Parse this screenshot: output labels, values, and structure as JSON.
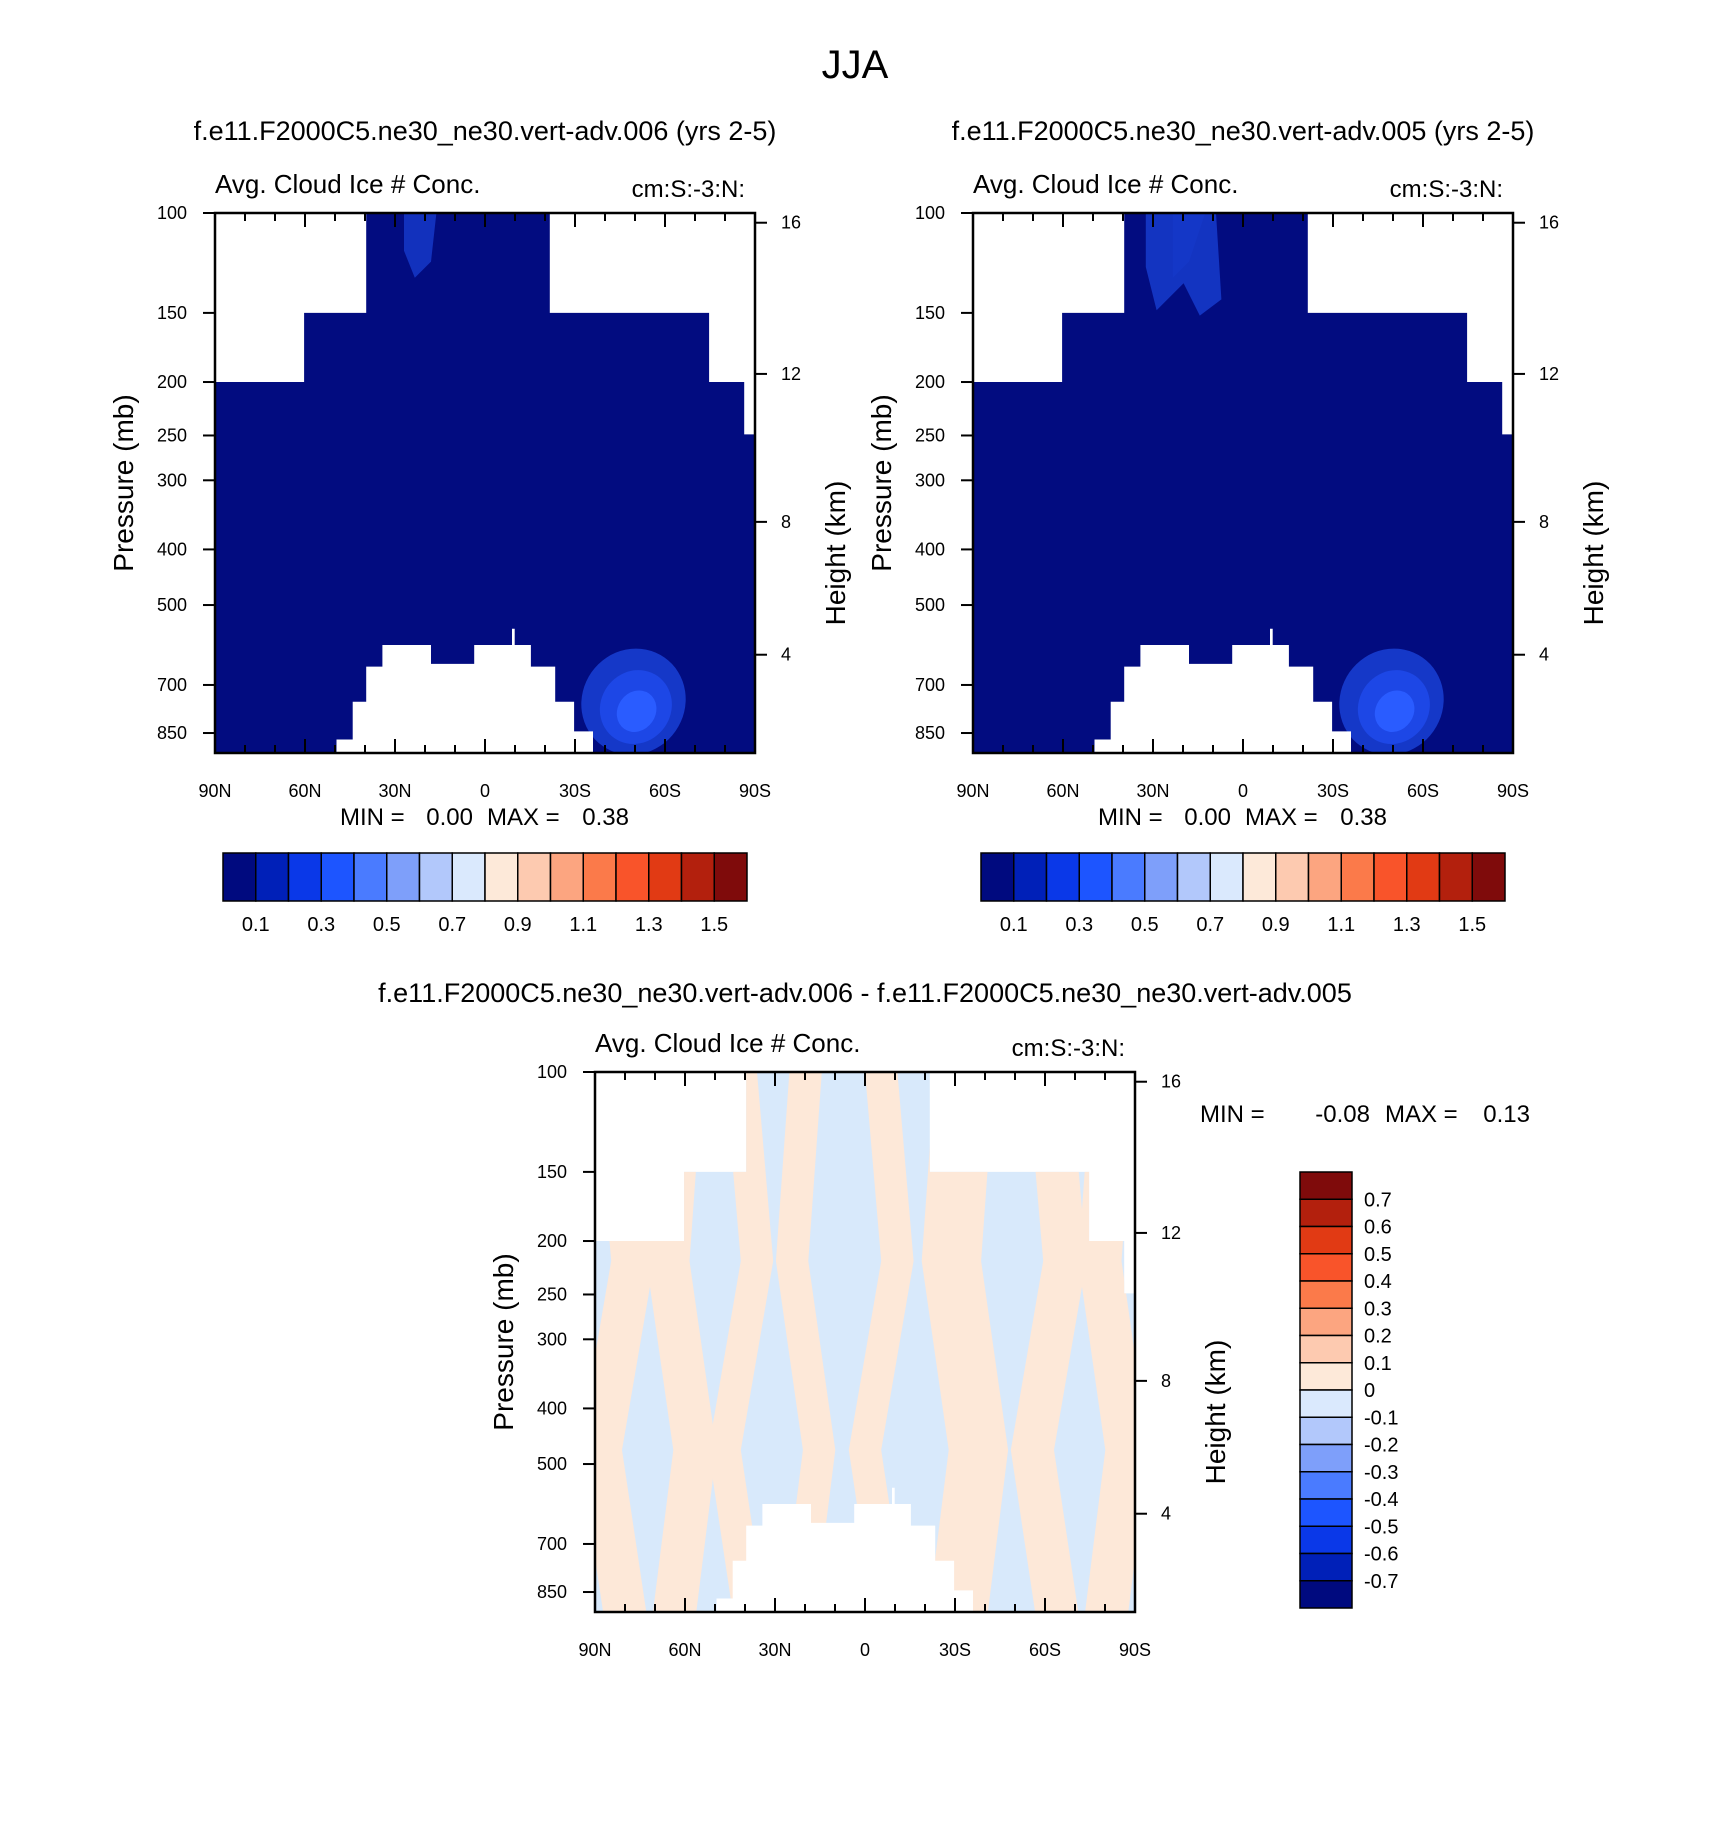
{
  "figure": {
    "title": "JJA"
  },
  "colors": {
    "background": "#ffffff",
    "frame": "#000000",
    "field_base": "#020c80",
    "field_mid": "#1538c8",
    "field_bright": "#2a5cff",
    "diff_positive": "#fde8d8",
    "diff_negative": "#d8e9fb"
  },
  "chart_data": [
    {
      "type": "heatmap",
      "title": "f.e11.F2000C5.ne30_ne30.vert-adv.006 (yrs 2-5)",
      "variable_label": "Avg. Cloud Ice # Conc.",
      "units_label": "cm:S:-3:N:",
      "ylabel": "Pressure (mb)",
      "ylabel_right": "Height (km)",
      "x_ticks": [
        "90N",
        "60N",
        "30N",
        "0",
        "30S",
        "60S",
        "90S"
      ],
      "y_ticks": [
        "100",
        "150",
        "200",
        "250",
        "300",
        "400",
        "500",
        "700",
        "850"
      ],
      "y_right_ticks": [
        "16",
        "12",
        "8",
        "4"
      ],
      "stats": {
        "min_label": "MIN =",
        "min": "0.00",
        "max_label": "MAX =",
        "max": "0.38"
      },
      "colorbar": {
        "orientation": "horizontal",
        "labels": [
          "0.1",
          "0.3",
          "0.5",
          "0.7",
          "0.9",
          "1.1",
          "1.3",
          "1.5"
        ],
        "colors": [
          "#000a7f",
          "#0020b8",
          "#0a38e8",
          "#1d55ff",
          "#4a7bff",
          "#7e9ffa",
          "#b2c8fb",
          "#dae9fd",
          "#fde9d9",
          "#fdcab0",
          "#fca580",
          "#fb7a4a",
          "#f9542a",
          "#e13a14",
          "#b3200d",
          "#7f0b0b"
        ]
      },
      "shape": "A"
    },
    {
      "type": "heatmap",
      "title": "f.e11.F2000C5.ne30_ne30.vert-adv.005 (yrs 2-5)",
      "variable_label": "Avg. Cloud Ice # Conc.",
      "units_label": "cm:S:-3:N:",
      "ylabel": "Pressure (mb)",
      "ylabel_right": "Height (km)",
      "x_ticks": [
        "90N",
        "60N",
        "30N",
        "0",
        "30S",
        "60S",
        "90S"
      ],
      "y_ticks": [
        "100",
        "150",
        "200",
        "250",
        "300",
        "400",
        "500",
        "700",
        "850"
      ],
      "y_right_ticks": [
        "16",
        "12",
        "8",
        "4"
      ],
      "stats": {
        "min_label": "MIN =",
        "min": "0.00",
        "max_label": "MAX =",
        "max": "0.38"
      },
      "colorbar": {
        "orientation": "horizontal",
        "labels": [
          "0.1",
          "0.3",
          "0.5",
          "0.7",
          "0.9",
          "1.1",
          "1.3",
          "1.5"
        ],
        "colors": [
          "#000a7f",
          "#0020b8",
          "#0a38e8",
          "#1d55ff",
          "#4a7bff",
          "#7e9ffa",
          "#b2c8fb",
          "#dae9fd",
          "#fde9d9",
          "#fdcab0",
          "#fca580",
          "#fb7a4a",
          "#f9542a",
          "#e13a14",
          "#b3200d",
          "#7f0b0b"
        ]
      },
      "shape": "B"
    },
    {
      "type": "heatmap",
      "title": "f.e11.F2000C5.ne30_ne30.vert-adv.006 - f.e11.F2000C5.ne30_ne30.vert-adv.005",
      "variable_label": "Avg. Cloud Ice # Conc.",
      "units_label": "cm:S:-3:N:",
      "ylabel": "Pressure (mb)",
      "ylabel_right": "Height (km)",
      "x_ticks": [
        "90N",
        "60N",
        "30N",
        "0",
        "30S",
        "60S",
        "90S"
      ],
      "y_ticks": [
        "100",
        "150",
        "200",
        "250",
        "300",
        "400",
        "500",
        "700",
        "850"
      ],
      "y_right_ticks": [
        "16",
        "12",
        "8",
        "4"
      ],
      "stats": {
        "min_label": "MIN =",
        "min": "-0.08",
        "max_label": "MAX =",
        "max": "0.13"
      },
      "colorbar": {
        "orientation": "vertical",
        "labels": [
          "0.7",
          "0.6",
          "0.5",
          "0.4",
          "0.3",
          "0.2",
          "0.1",
          "0",
          "-0.1",
          "-0.2",
          "-0.3",
          "-0.4",
          "-0.5",
          "-0.6",
          "-0.7"
        ],
        "colors": [
          "#7f0b0b",
          "#b3200d",
          "#e13a14",
          "#f9542a",
          "#fb7a4a",
          "#fca580",
          "#fdcab0",
          "#fde9d9",
          "#dae9fd",
          "#b2c8fb",
          "#7e9ffa",
          "#4a7bff",
          "#1d55ff",
          "#0a38e8",
          "#0020b8",
          "#000a7f"
        ]
      },
      "shape": "A"
    }
  ]
}
